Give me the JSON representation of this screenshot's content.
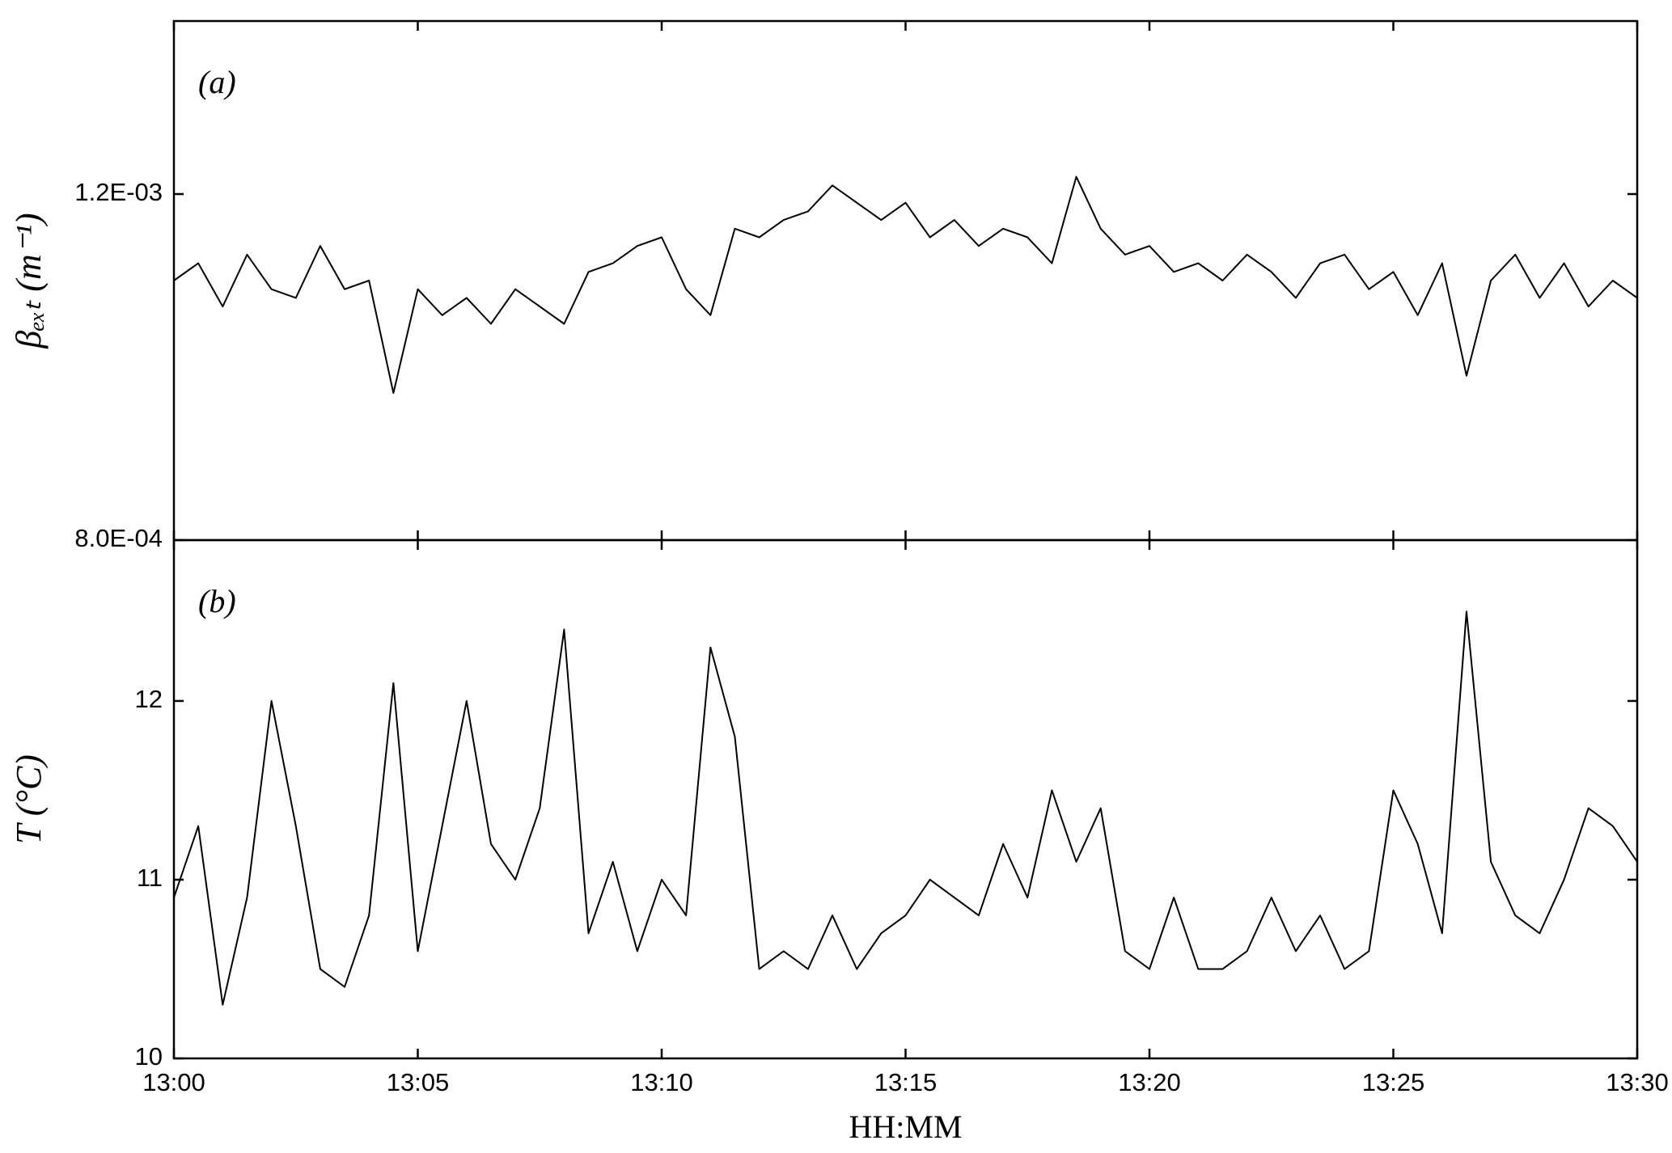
{
  "chart_data": [
    {
      "type": "line",
      "panel_label": "(a)",
      "y_label": "βₑₓₜ (m⁻¹)",
      "x": [
        0,
        0.5,
        1,
        1.5,
        2,
        2.5,
        3,
        3.5,
        4,
        4.5,
        5,
        5.5,
        6,
        6.5,
        7,
        7.5,
        8,
        8.5,
        9,
        9.5,
        10,
        10.5,
        11,
        11.5,
        12,
        12.5,
        13,
        13.5,
        14,
        14.5,
        15,
        15.5,
        16,
        16.5,
        17,
        17.5,
        18,
        18.5,
        19,
        19.5,
        20,
        20.5,
        21,
        21.5,
        22,
        22.5,
        23,
        23.5,
        24,
        24.5,
        25,
        25.5,
        26,
        26.5,
        27,
        27.5,
        28,
        28.5,
        29,
        29.5,
        30
      ],
      "series": [
        {
          "color": "#000000",
          "values": [
            0.0011,
            0.00112,
            0.00107,
            0.00113,
            0.00109,
            0.00108,
            0.00114,
            0.00109,
            0.0011,
            0.00097,
            0.00109,
            0.00106,
            0.00108,
            0.00105,
            0.00109,
            0.00107,
            0.00105,
            0.00111,
            0.00112,
            0.00114,
            0.00115,
            0.00109,
            0.00106,
            0.00116,
            0.00115,
            0.00117,
            0.00118,
            0.00121,
            0.00119,
            0.00117,
            0.00119,
            0.00115,
            0.00117,
            0.00114,
            0.00116,
            0.00115,
            0.00112,
            0.00122,
            0.00116,
            0.00113,
            0.00114,
            0.00111,
            0.00112,
            0.0011,
            0.00113,
            0.00111,
            0.00108,
            0.00112,
            0.00113,
            0.00109,
            0.00111,
            0.00106,
            0.00112,
            0.00099,
            0.0011,
            0.00113,
            0.00108,
            0.00112,
            0.00107,
            0.0011,
            0.00108
          ]
        }
      ],
      "xlim": [
        0,
        30
      ],
      "ylim": [
        0.0008,
        0.0014
      ],
      "yticks": [
        {
          "value": 0.0008,
          "label": "8.0E-04"
        },
        {
          "value": 0.0012,
          "label": "1.2E-03"
        }
      ]
    },
    {
      "type": "line",
      "panel_label": "(b)",
      "y_label": "T (°C)",
      "x_label": "HH:MM",
      "x": [
        0,
        0.5,
        1,
        1.5,
        2,
        2.5,
        3,
        3.5,
        4,
        4.5,
        5,
        5.5,
        6,
        6.5,
        7,
        7.5,
        8,
        8.5,
        9,
        9.5,
        10,
        10.5,
        11,
        11.5,
        12,
        12.5,
        13,
        13.5,
        14,
        14.5,
        15,
        15.5,
        16,
        16.5,
        17,
        17.5,
        18,
        18.5,
        19,
        19.5,
        20,
        20.5,
        21,
        21.5,
        22,
        22.5,
        23,
        23.5,
        24,
        24.5,
        25,
        25.5,
        26,
        26.5,
        27,
        27.5,
        28,
        28.5,
        29,
        29.5,
        30
      ],
      "series": [
        {
          "color": "#000000",
          "values": [
            10.9,
            11.3,
            10.3,
            10.9,
            12.0,
            11.3,
            10.5,
            10.4,
            10.8,
            12.1,
            10.6,
            11.3,
            12.0,
            11.2,
            11.0,
            11.4,
            12.4,
            10.7,
            11.1,
            10.6,
            11.0,
            10.8,
            12.3,
            11.8,
            10.5,
            10.6,
            10.5,
            10.8,
            10.5,
            10.7,
            10.8,
            11.0,
            10.9,
            10.8,
            11.2,
            10.9,
            11.5,
            11.1,
            11.4,
            10.6,
            10.5,
            10.9,
            10.5,
            10.5,
            10.6,
            10.9,
            10.6,
            10.8,
            10.5,
            10.6,
            11.5,
            11.2,
            10.7,
            12.5,
            11.1,
            10.8,
            10.7,
            11.0,
            11.4,
            11.3,
            11.1
          ]
        }
      ],
      "xlim": [
        0,
        30
      ],
      "ylim": [
        10,
        12.9
      ],
      "yticks": [
        10,
        11,
        12
      ],
      "xticks": [
        {
          "value": 0,
          "label": "13:00"
        },
        {
          "value": 5,
          "label": "13:05"
        },
        {
          "value": 10,
          "label": "13:10"
        },
        {
          "value": 15,
          "label": "13:15"
        },
        {
          "value": 20,
          "label": "13:20"
        },
        {
          "value": 25,
          "label": "13:25"
        },
        {
          "value": 30,
          "label": "13:30"
        }
      ]
    }
  ]
}
